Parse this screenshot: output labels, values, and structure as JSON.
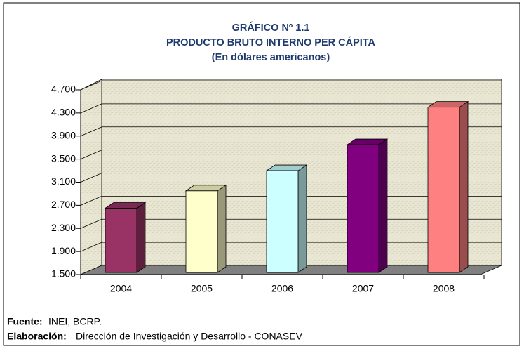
{
  "chart_data": {
    "type": "bar3d",
    "title_lines": [
      "GRÁFICO Nº 1.1",
      "PRODUCTO BRUTO INTERNO PER CÁPITA",
      "(En dólares americanos)"
    ],
    "categories": [
      "2004",
      "2005",
      "2006",
      "2007",
      "2008"
    ],
    "values": [
      2650,
      2950,
      3300,
      3750,
      4400
    ],
    "colors": [
      "#993366",
      "#ffffcc",
      "#ccffff",
      "#800080",
      "#ff8080"
    ],
    "ylim": [
      1500,
      4700
    ],
    "yticks": [
      {
        "value": 1500,
        "label": "1.500"
      },
      {
        "value": 1900,
        "label": "1.900"
      },
      {
        "value": 2300,
        "label": "2.300"
      },
      {
        "value": 2700,
        "label": "2.700"
      },
      {
        "value": 3100,
        "label": "3.100"
      },
      {
        "value": 3500,
        "label": "3.500"
      },
      {
        "value": 3900,
        "label": "3.900"
      },
      {
        "value": 4300,
        "label": "4.300"
      },
      {
        "value": 4700,
        "label": "4.700"
      }
    ],
    "grid": true
  },
  "footer": {
    "source_label": "Fuente:",
    "source_text": "INEI, BCRP.",
    "author_label": "Elaboración:",
    "author_text": "Dirección de Investigación y Desarrollo - CONASEV"
  }
}
